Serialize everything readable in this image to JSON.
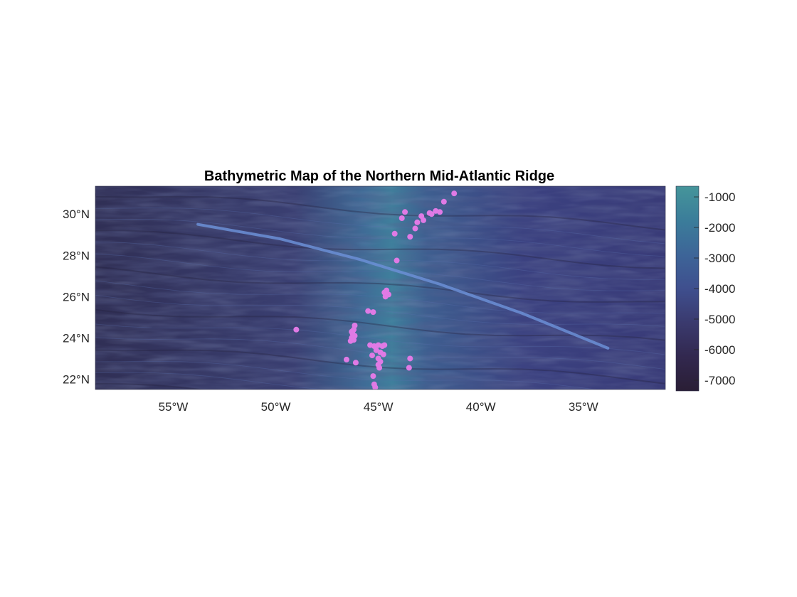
{
  "figure": {
    "title": "Bathymetric Map of the Northern Mid-Atlantic Ridge"
  },
  "map_data": {
    "type": "bathymetry-map",
    "lon_range": [
      -58.8,
      -31.0
    ],
    "lat_range": [
      21.5,
      31.35
    ],
    "x_ticks": [
      {
        "value": -55,
        "label": "55°W"
      },
      {
        "value": -50,
        "label": "50°W"
      },
      {
        "value": -45,
        "label": "45°W"
      },
      {
        "value": -40,
        "label": "40°W"
      },
      {
        "value": -35,
        "label": "35°W"
      }
    ],
    "y_ticks": [
      {
        "value": 30,
        "label": "30°N"
      },
      {
        "value": 28,
        "label": "28°N"
      },
      {
        "value": 26,
        "label": "26°N"
      },
      {
        "value": 24,
        "label": "24°N"
      },
      {
        "value": 22,
        "label": "22°N"
      }
    ],
    "colorbar": {
      "range": [
        -7350,
        -650
      ],
      "ticks": [
        {
          "value": -1000,
          "label": "-1000"
        },
        {
          "value": -2000,
          "label": "-2000"
        },
        {
          "value": -3000,
          "label": "-3000"
        },
        {
          "value": -4000,
          "label": "-4000"
        },
        {
          "value": -5000,
          "label": "-5000"
        },
        {
          "value": -6000,
          "label": "-6000"
        },
        {
          "value": -7000,
          "label": "-7000"
        }
      ],
      "colors": [
        "#2a1e35",
        "#32284f",
        "#3a3a6e",
        "#3f4f8e",
        "#3d6598",
        "#3b7d9a",
        "#45959a"
      ]
    },
    "track_line": {
      "color": "#6b8fd6",
      "points": [
        [
          -53.8,
          29.5
        ],
        [
          -49.8,
          28.8
        ],
        [
          -45.9,
          27.8
        ],
        [
          -42.0,
          26.6
        ],
        [
          -38.0,
          25.2
        ],
        [
          -33.8,
          23.5
        ]
      ]
    },
    "sites": {
      "color": "#e07ae5",
      "points": [
        [
          -41.3,
          31.0
        ],
        [
          -41.8,
          30.6
        ],
        [
          -42.0,
          30.1
        ],
        [
          -42.2,
          30.15
        ],
        [
          -42.4,
          30.0
        ],
        [
          -42.5,
          30.05
        ],
        [
          -42.9,
          29.9
        ],
        [
          -42.8,
          29.7
        ],
        [
          -43.1,
          29.6
        ],
        [
          -43.2,
          29.3
        ],
        [
          -43.45,
          28.9
        ],
        [
          -43.7,
          30.1
        ],
        [
          -43.85,
          29.8
        ],
        [
          -44.2,
          29.05
        ],
        [
          -44.1,
          27.75
        ],
        [
          -44.6,
          26.3
        ],
        [
          -44.7,
          26.2
        ],
        [
          -44.5,
          26.1
        ],
        [
          -44.65,
          26.0
        ],
        [
          -45.5,
          25.3
        ],
        [
          -45.25,
          25.25
        ],
        [
          -46.15,
          24.6
        ],
        [
          -46.2,
          24.4
        ],
        [
          -46.25,
          24.2
        ],
        [
          -46.3,
          24.0
        ],
        [
          -46.2,
          23.9
        ],
        [
          -46.35,
          23.85
        ],
        [
          -46.15,
          24.1
        ],
        [
          -46.3,
          24.3
        ],
        [
          -49.0,
          24.4
        ],
        [
          -45.4,
          23.65
        ],
        [
          -45.2,
          23.6
        ],
        [
          -45.0,
          23.65
        ],
        [
          -44.8,
          23.6
        ],
        [
          -44.7,
          23.65
        ],
        [
          -45.1,
          23.4
        ],
        [
          -44.9,
          23.3
        ],
        [
          -44.75,
          23.2
        ],
        [
          -45.3,
          23.15
        ],
        [
          -45.0,
          23.0
        ],
        [
          -44.9,
          22.85
        ],
        [
          -45.0,
          22.7
        ],
        [
          -44.95,
          22.55
        ],
        [
          -46.55,
          22.95
        ],
        [
          -46.1,
          22.8
        ],
        [
          -45.25,
          22.15
        ],
        [
          -45.2,
          21.75
        ],
        [
          -45.15,
          21.6
        ],
        [
          -43.45,
          23.0
        ],
        [
          -43.5,
          22.55
        ]
      ]
    }
  }
}
